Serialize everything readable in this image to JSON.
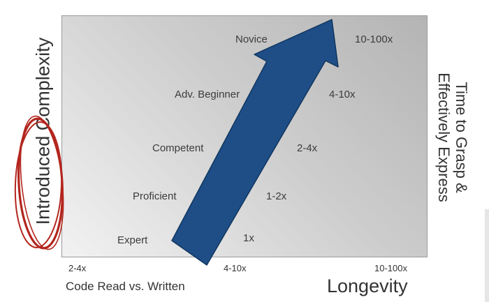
{
  "levels": [
    "Novice",
    "Adv. Beginner",
    "Competent",
    "Proficient",
    "Expert"
  ],
  "multipliers": [
    "10-100x",
    "4-10x",
    "2-4x",
    "1-2x",
    "1x"
  ],
  "x_ticks": [
    "2-4x",
    "4-10x",
    "10-100x"
  ],
  "x_label": "Code Read vs. Written",
  "x_label_large": "Longevity",
  "y_label": "Introduced Complexity",
  "right_label": [
    "Time to Grasp &",
    "Effectively Express"
  ],
  "colors": {
    "arrow": "#1f4e87",
    "arrow_stroke": "#10365f",
    "circle": "#b3261e",
    "plot_light": "#f2f2f2",
    "plot_dark": "#b4b4b4"
  }
}
